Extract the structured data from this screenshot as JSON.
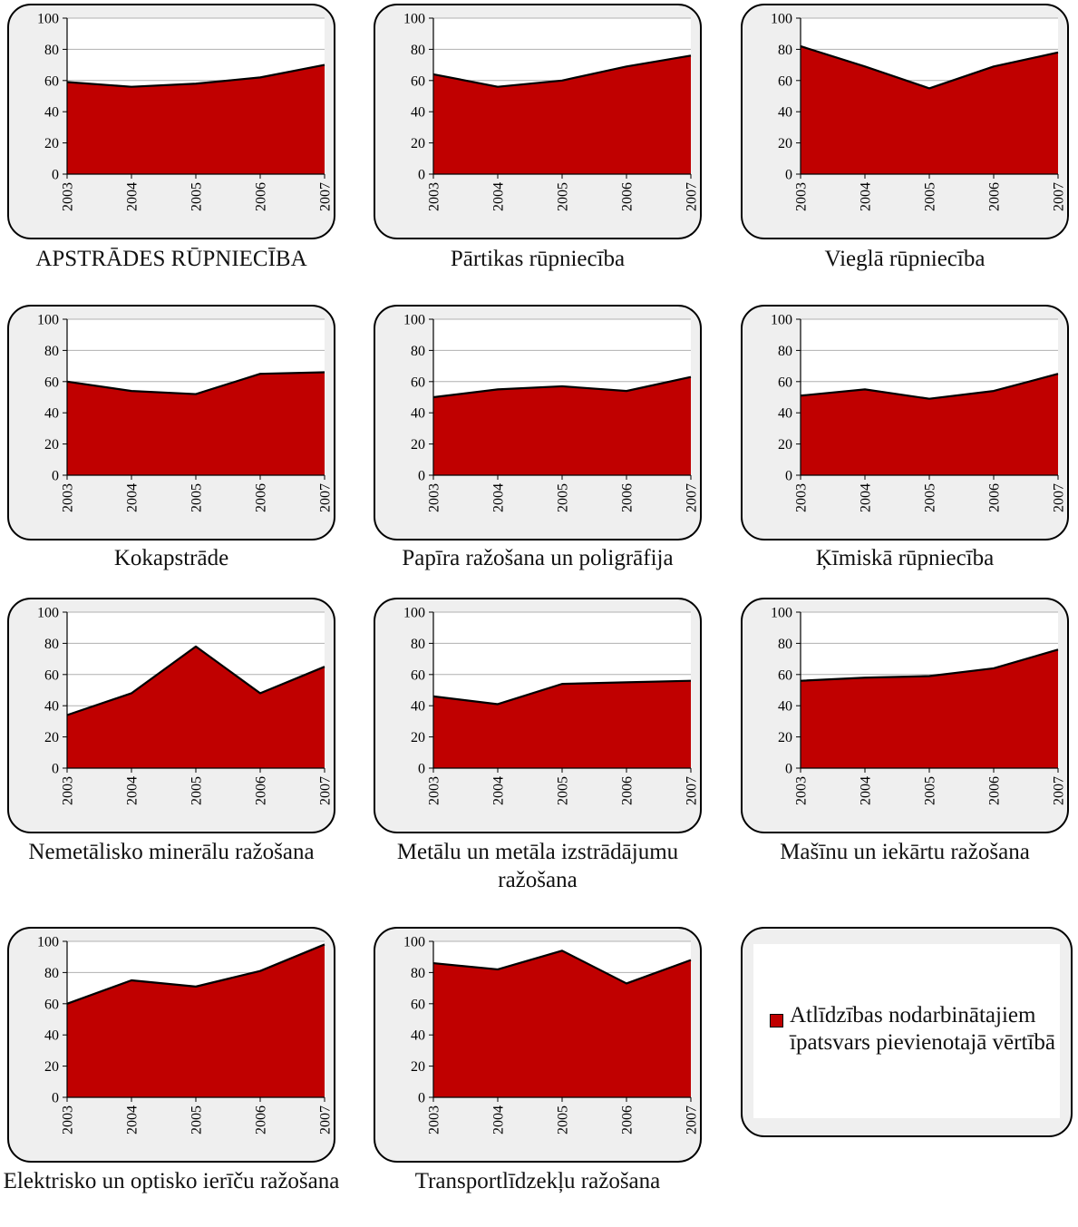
{
  "chart_data": [
    {
      "type": "area",
      "title": "APSTRĀDES RŪPNIECĪBA",
      "x": [
        "2003",
        "2004",
        "2005",
        "2006",
        "2007"
      ],
      "values": [
        59,
        56,
        58,
        62,
        70
      ],
      "ylim": [
        0,
        100
      ],
      "yticks": [
        0,
        20,
        40,
        60,
        80,
        100
      ],
      "grid": true
    },
    {
      "type": "area",
      "title": "Pārtikas rūpniecība",
      "x": [
        "2003",
        "2004",
        "2005",
        "2006",
        "2007"
      ],
      "values": [
        64,
        56,
        60,
        69,
        76
      ],
      "ylim": [
        0,
        100
      ],
      "yticks": [
        0,
        20,
        40,
        60,
        80,
        100
      ],
      "grid": true
    },
    {
      "type": "area",
      "title": "Vieglā rūpniecība",
      "x": [
        "2003",
        "2004",
        "2005",
        "2006",
        "2007"
      ],
      "values": [
        82,
        69,
        55,
        69,
        78
      ],
      "ylim": [
        0,
        100
      ],
      "yticks": [
        0,
        20,
        40,
        60,
        80,
        100
      ],
      "grid": true
    },
    {
      "type": "area",
      "title": "Kokapstrāde",
      "x": [
        "2003",
        "2004",
        "2005",
        "2006",
        "2007"
      ],
      "values": [
        60,
        54,
        52,
        65,
        66
      ],
      "ylim": [
        0,
        100
      ],
      "yticks": [
        0,
        20,
        40,
        60,
        80,
        100
      ],
      "grid": true
    },
    {
      "type": "area",
      "title": "Papīra ražošana un poligrāfija",
      "x": [
        "2003",
        "2004",
        "2005",
        "2006",
        "2007"
      ],
      "values": [
        50,
        55,
        57,
        54,
        63
      ],
      "ylim": [
        0,
        100
      ],
      "yticks": [
        0,
        20,
        40,
        60,
        80,
        100
      ],
      "grid": true
    },
    {
      "type": "area",
      "title": "Ķīmiskā rūpniecība",
      "x": [
        "2003",
        "2004",
        "2005",
        "2006",
        "2007"
      ],
      "values": [
        51,
        55,
        49,
        54,
        65
      ],
      "ylim": [
        0,
        100
      ],
      "yticks": [
        0,
        20,
        40,
        60,
        80,
        100
      ],
      "grid": true
    },
    {
      "type": "area",
      "title": "Nemetālisko minerālu ražošana",
      "x": [
        "2003",
        "2004",
        "2005",
        "2006",
        "2007"
      ],
      "values": [
        34,
        48,
        78,
        48,
        65
      ],
      "ylim": [
        0,
        100
      ],
      "yticks": [
        0,
        20,
        40,
        60,
        80,
        100
      ],
      "grid": true
    },
    {
      "type": "area",
      "title": "Metālu un metāla izstrādājumu ražošana",
      "x": [
        "2003",
        "2004",
        "2005",
        "2006",
        "2007"
      ],
      "values": [
        46,
        41,
        54,
        55,
        56
      ],
      "ylim": [
        0,
        100
      ],
      "yticks": [
        0,
        20,
        40,
        60,
        80,
        100
      ],
      "grid": true
    },
    {
      "type": "area",
      "title": "Mašīnu un iekārtu ražošana",
      "x": [
        "2003",
        "2004",
        "2005",
        "2006",
        "2007"
      ],
      "values": [
        56,
        58,
        59,
        64,
        76
      ],
      "ylim": [
        0,
        100
      ],
      "yticks": [
        0,
        20,
        40,
        60,
        80,
        100
      ],
      "grid": true
    },
    {
      "type": "area",
      "title": "Elektrisko un optisko ierīču ražošana",
      "x": [
        "2003",
        "2004",
        "2005",
        "2006",
        "2007"
      ],
      "values": [
        60,
        75,
        71,
        81,
        98
      ],
      "ylim": [
        0,
        100
      ],
      "yticks": [
        0,
        20,
        40,
        60,
        80,
        100
      ],
      "grid": true
    },
    {
      "type": "area",
      "title": "Transportlīdzekļu ražošana",
      "x": [
        "2003",
        "2004",
        "2005",
        "2006",
        "2007"
      ],
      "values": [
        86,
        82,
        94,
        73,
        88
      ],
      "ylim": [
        0,
        100
      ],
      "yticks": [
        0,
        20,
        40,
        60,
        80,
        100
      ],
      "grid": true
    }
  ],
  "legend": {
    "label": "Atlīdzības nodarbinātajiem īpatsvars pievienotajā vērtībā",
    "color": "#c00000",
    "placement": "bottom-right"
  },
  "colors": {
    "fill": "#c00000",
    "line": "#000000",
    "grid": "#b0b0b0",
    "panel": "#efefef"
  }
}
